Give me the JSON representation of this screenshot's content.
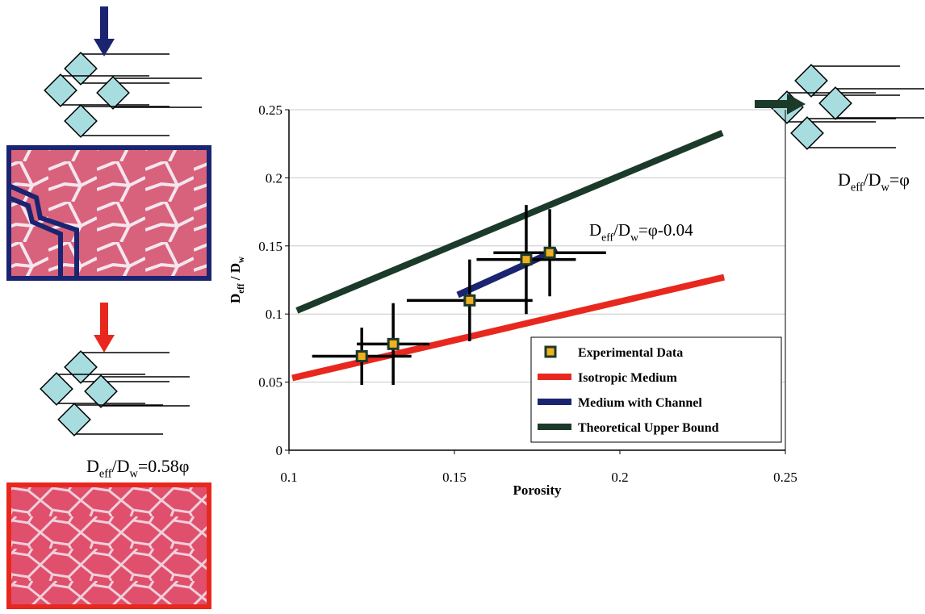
{
  "chart_data": {
    "type": "scatter",
    "xlabel": "Porosity",
    "ylabel": {
      "parts": [
        "D",
        "eff",
        " / D",
        "w"
      ]
    },
    "xlim": [
      0.1,
      0.25
    ],
    "xticks": [
      0.1,
      0.15,
      0.2,
      0.25
    ],
    "ylim": [
      0,
      0.25
    ],
    "yticks": [
      0,
      0.05,
      0.1,
      0.15,
      0.2,
      0.25
    ],
    "grid": true,
    "legend": "lower right",
    "series": [
      {
        "name": "Experimental Data",
        "style": "markers",
        "color": "#f0b020",
        "edgecolor": "#1c3a2a",
        "x": [
          0.122,
          0.1315,
          0.1546,
          0.1717,
          0.1788
        ],
        "values": [
          0.069,
          0.078,
          0.11,
          0.14,
          0.145
        ],
        "xerr": [
          0.015,
          0.011,
          0.019,
          0.015,
          0.017
        ],
        "yerr": [
          0.021,
          0.03,
          0.03,
          0.04,
          0.032
        ]
      },
      {
        "name": "Isotropic Medium",
        "style": "line",
        "color": "#e8281e",
        "x": [
          0.101,
          0.2315
        ],
        "values": [
          0.053,
          0.127
        ]
      },
      {
        "name": "Medium with Channel",
        "style": "line",
        "color": "#1a2470",
        "x": [
          0.151,
          0.181
        ],
        "values": [
          0.114,
          0.147
        ]
      },
      {
        "name": "Theoretical Upper Bound",
        "style": "line",
        "color": "#1c3a2a",
        "x": [
          0.1024,
          0.231
        ],
        "values": [
          0.1025,
          0.233
        ]
      }
    ],
    "annotations": [
      {
        "parts": [
          "D",
          "eff",
          "/D",
          "w",
          "=φ-0.04"
        ]
      },
      {
        "parts": [
          "D",
          "eff",
          "/D",
          "w",
          "=φ"
        ]
      },
      {
        "parts": [
          "D",
          "eff",
          "/D",
          "w",
          "=0.58φ"
        ]
      }
    ]
  }
}
